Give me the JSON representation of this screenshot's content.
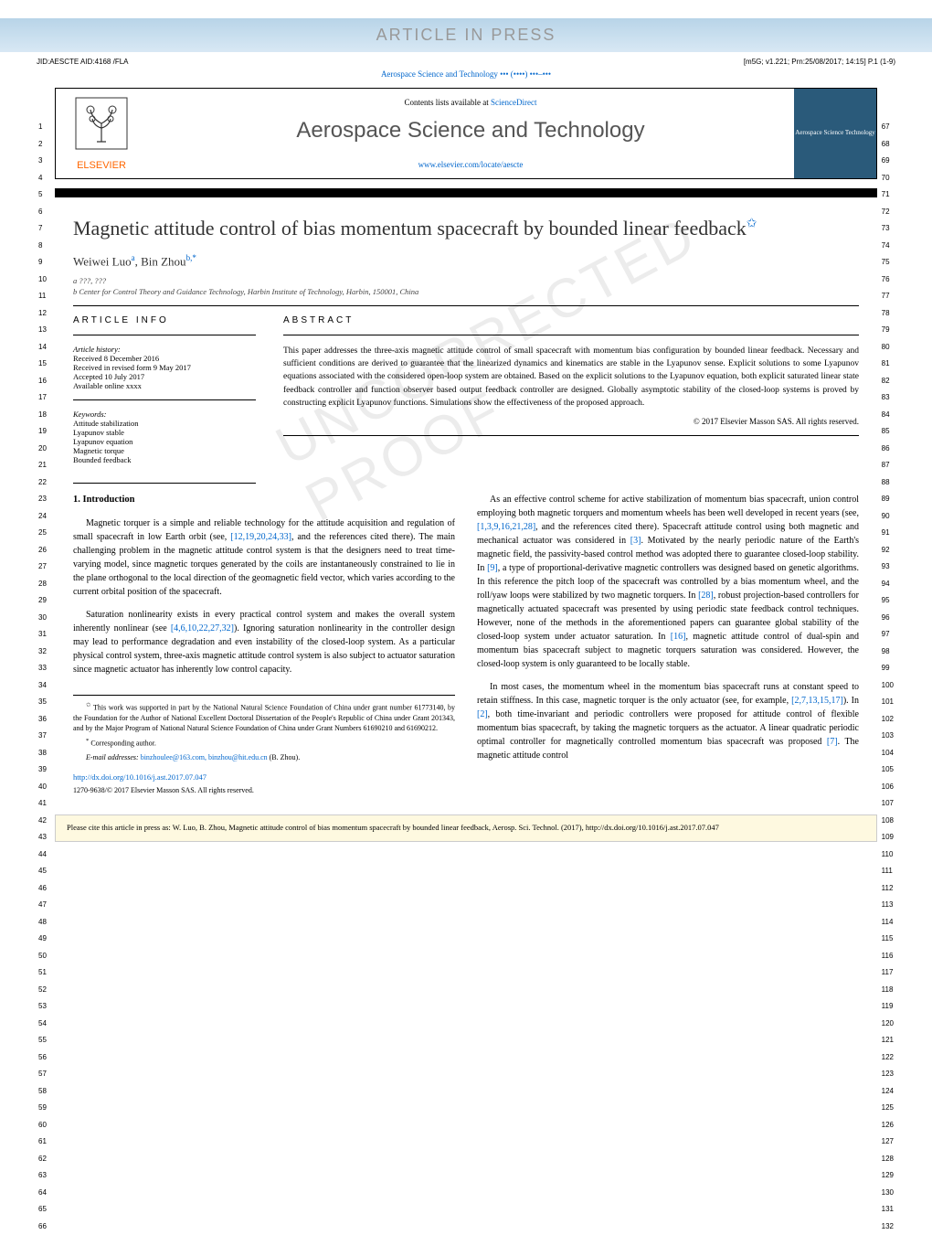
{
  "banner": "ARTICLE IN PRESS",
  "meta_left": "JID:AESCTE   AID:4168 /FLA",
  "meta_right": "[m5G; v1.221; Prn:25/08/2017; 14:15] P.1 (1-9)",
  "journal_ref": "Aerospace Science and Technology ••• (••••) •••–•••",
  "masthead": {
    "sd_text": "Contents lists available at ",
    "sd_link": "ScienceDirect",
    "journal_name": "Aerospace Science and Technology",
    "journal_url": "www.elsevier.com/locate/aescte",
    "publisher": "ELSEVIER",
    "cover_text": "Aerospace Science Technology"
  },
  "title": "Magnetic attitude control of bias momentum spacecraft by bounded linear feedback",
  "authors_html": "Weiwei Luo",
  "author_a_sup": "a",
  "author2": ", Bin Zhou",
  "author_b_sup": "b,*",
  "affiliations": [
    "a ???, ???",
    "b Center for Control Theory and Guidance Technology, Harbin Institute of Technology, Harbin, 150001, China"
  ],
  "article_info_hdr": "ARTICLE INFO",
  "abstract_hdr": "ABSTRACT",
  "history_label": "Article history:",
  "history": [
    "Received 8 December 2016",
    "Received in revised form 9 May 2017",
    "Accepted 10 July 2017",
    "Available online xxxx"
  ],
  "keywords_label": "Keywords:",
  "keywords": [
    "Attitude stabilization",
    "Lyapunov stable",
    "Lyapunov equation",
    "Magnetic torque",
    "Bounded feedback"
  ],
  "abstract": "This paper addresses the three-axis magnetic attitude control of small spacecraft with momentum bias configuration by bounded linear feedback. Necessary and sufficient conditions are derived to guarantee that the linearized dynamics and kinematics are stable in the Lyapunov sense. Explicit solutions to some Lyapunov equations associated with the considered open-loop system are obtained. Based on the explicit solutions to the Lyapunov equation, both explicit saturated linear state feedback controller and function observer based output feedback controller are designed. Globally asymptotic stability of the closed-loop systems is proved by constructing explicit Lyapunov functions. Simulations show the effectiveness of the proposed approach.",
  "abstract_copyright": "© 2017 Elsevier Masson SAS. All rights reserved.",
  "section1_hdr": "1. Introduction",
  "col1_p1": "Magnetic torquer is a simple and reliable technology for the attitude acquisition and regulation of small spacecraft in low Earth orbit (see, [12,19,20,24,33], and the references cited there). The main challenging problem in the magnetic attitude control system is that the designers need to treat time-varying model, since magnetic torques generated by the coils are instantaneously constrained to lie in the plane orthogonal to the local direction of the geomagnetic field vector, which varies according to the current orbital position of the spacecraft.",
  "col1_p2": "Saturation nonlinearity exists in every practical control system and makes the overall system inherently nonlinear (see [4,6,10,22,27,32]). Ignoring saturation nonlinearity in the controller design may lead to performance degradation and even instability of the closed-loop system. As a particular physical control system, three-axis magnetic attitude control system is also subject to actuator saturation since magnetic actuator has inherently low control capacity.",
  "col2_p1": "As an effective control scheme for active stabilization of momentum bias spacecraft, union control employing both magnetic torquers and momentum wheels has been well developed in recent years (see, [1,3,9,16,21,28], and the references cited there). Spacecraft attitude control using both magnetic and mechanical actuator was considered in [3]. Motivated by the nearly periodic nature of the Earth's magnetic field, the passivity-based control method was adopted there to guarantee closed-loop stability. In [9], a type of proportional-derivative magnetic controllers was designed based on genetic algorithms. In this reference the pitch loop of the spacecraft was controlled by a bias momentum wheel, and the roll/yaw loops were stabilized by two magnetic torquers. In [28], robust projection-based controllers for magnetically actuated spacecraft was presented by using periodic state feedback control techniques. However, none of the methods in the aforementioned papers can guarantee global stability of the closed-loop system under actuator saturation. In [16], magnetic attitude control of dual-spin and momentum bias spacecraft subject to magnetic torquers saturation was considered. However, the closed-loop system is only guaranteed to be locally stable.",
  "col2_p2": "In most cases, the momentum wheel in the momentum bias spacecraft runs at constant speed to retain stiffness. In this case, magnetic torquer is the only actuator (see, for example, [2,7,13,15,17]). In [2], both time-invariant and periodic controllers were proposed for attitude control of flexible momentum bias spacecraft, by taking the magnetic torquers as the actuator. A linear quadratic periodic optimal controller for magnetically controlled momentum bias spacecraft was proposed [7]. The magnetic attitude control",
  "footnote_star": "This work was supported in part by the National Natural Science Foundation of China under grant number 61773140, by the Foundation for the Author of National Excellent Doctoral Dissertation of the People's Republic of China under Grant 201343, and by the Major Program of National Natural Science Foundation of China under Grant Numbers 61690210 and 61690212.",
  "footnote_corr": "Corresponding author.",
  "footnote_email_lbl": "E-mail addresses: ",
  "footnote_emails": "binzhoulee@163.com, binzhou@hit.edu.cn",
  "footnote_email_sfx": " (B. Zhou).",
  "doi": "http://dx.doi.org/10.1016/j.ast.2017.07.047",
  "issn": "1270-9638/© 2017 Elsevier Masson SAS. All rights reserved.",
  "cite_box": "Please cite this article in press as: W. Luo, B. Zhou, Magnetic attitude control of bias momentum spacecraft by bounded linear feedback, Aerosp. Sci. Technol. (2017), http://dx.doi.org/10.1016/j.ast.2017.07.047",
  "watermark": "UNCORRECTED PROOF",
  "colors": {
    "link": "#0066cc",
    "banner_bg_top": "#b8d4e8",
    "banner_bg_bot": "#d8e8f4",
    "banner_text": "#999999",
    "elsevier": "#ff6600",
    "cover_bg": "#2a5a7a",
    "cite_bg": "#fef9e0"
  },
  "line_numbers": {
    "left_start": 1,
    "left_end": 66,
    "right_start": 67,
    "right_end": 132
  }
}
